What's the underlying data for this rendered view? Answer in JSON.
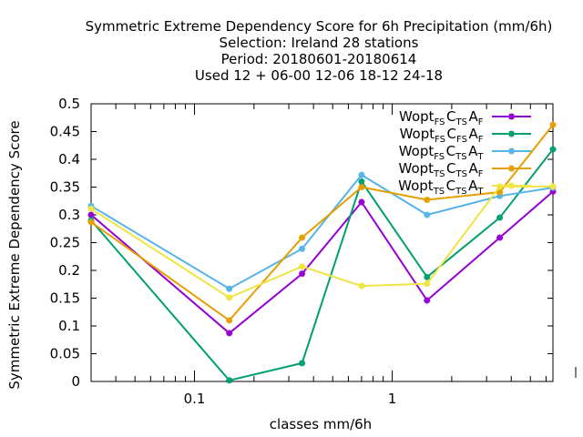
{
  "header": {
    "line1": "Symmetric Extreme Dependency Score  for 6h Precipitation (mm/6h)",
    "line2": "Selection: Ireland     28 stations",
    "line3": "Period: 20180601-20180614",
    "line4": "Used  12 + 06-00 12-06 18-12 24-18"
  },
  "chart_data": {
    "type": "line",
    "title": "Symmetric Extreme Dependency Score  for 6h Precipitation (mm/6h)",
    "xlabel": "classes mm/6h",
    "ylabel": "Symmetric Extreme Dependency Score",
    "x_scale": "log",
    "xlim": [
      0.03,
      6.5
    ],
    "ylim": [
      0,
      0.5
    ],
    "y_ticks": [
      "0",
      "0.05",
      "0.1",
      "0.15",
      "0.2",
      "0.25",
      "0.3",
      "0.35",
      "0.4",
      "0.45",
      "0.5"
    ],
    "x_ticks": [
      "0.1",
      "1"
    ],
    "legend_position": "top-right",
    "grid": false,
    "x": [
      0.03,
      0.15,
      0.35,
      0.7,
      1.5,
      3.5,
      6.5
    ],
    "series": [
      {
        "name_main": [
          "Wopt",
          "C",
          "A"
        ],
        "name_sub": [
          "FS",
          "TS",
          "F"
        ],
        "color": "#9400d3",
        "values": [
          0.3,
          0.087,
          0.194,
          0.323,
          0.146,
          0.259,
          0.342
        ]
      },
      {
        "name_main": [
          "Wopt",
          "C",
          "A"
        ],
        "name_sub": [
          "FS",
          "FS",
          "F"
        ],
        "color": "#009e73",
        "values": [
          0.29,
          0.002,
          0.033,
          0.36,
          0.188,
          0.295,
          0.418
        ]
      },
      {
        "name_main": [
          "Wopt",
          "C",
          "A"
        ],
        "name_sub": [
          "FS",
          "TS",
          "T"
        ],
        "color": "#56b4e9",
        "values": [
          0.316,
          0.167,
          0.239,
          0.372,
          0.3,
          0.334,
          0.349
        ]
      },
      {
        "name_main": [
          "Wopt",
          "C",
          "A"
        ],
        "name_sub": [
          "TS",
          "TS",
          "F"
        ],
        "color": "#e69f00",
        "values": [
          0.287,
          0.11,
          0.259,
          0.35,
          0.327,
          0.341,
          0.462
        ]
      },
      {
        "name_main": [
          "Wopt",
          "C",
          "A"
        ],
        "name_sub": [
          "TS",
          "TS",
          "T"
        ],
        "color": "#f0e442",
        "values": [
          0.311,
          0.151,
          0.207,
          0.172,
          0.176,
          0.351,
          0.351
        ]
      }
    ]
  }
}
